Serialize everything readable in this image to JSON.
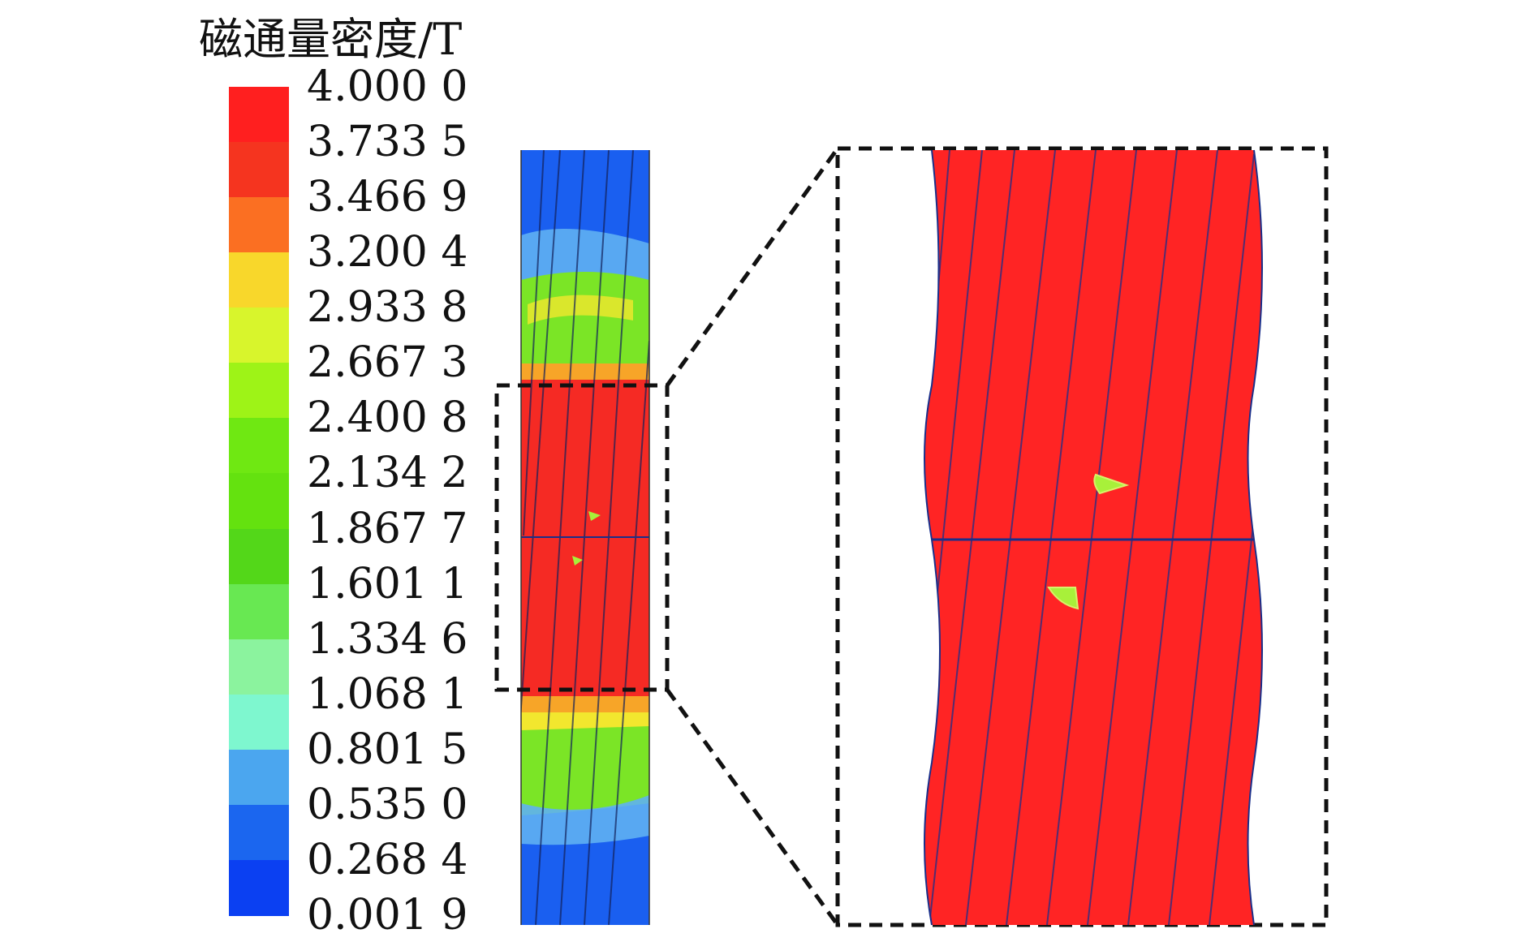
{
  "legend": {
    "title": "磁通量密度/T",
    "ticks": [
      "4.000 0",
      "3.733 5",
      "3.466 9",
      "3.200 4",
      "2.933 8",
      "2.667 3",
      "2.400 8",
      "2.134 2",
      "1.867 7",
      "1.601 1",
      "1.334 6",
      "1.068 1",
      "0.801 5",
      "0.535 0",
      "0.268 4",
      "0.001 9"
    ],
    "colors": [
      "#ff1f1f",
      "#f5341f",
      "#fb6f22",
      "#f8d72b",
      "#d8f52c",
      "#9ef317",
      "#6fe812",
      "#64e20f",
      "#53d719",
      "#68e852",
      "#8bf39e",
      "#7ef7cf",
      "#4ba6ef",
      "#1b66ef",
      "#0b40f2"
    ]
  },
  "diagram": {
    "rod": {
      "colors": {
        "blue": "#1a5ff0",
        "red": "#f52a24",
        "yellow": "#f2e72e",
        "green": "#7be526",
        "light_blue": "#5fb0f2"
      }
    },
    "zoom": {
      "fill": "#ff2424",
      "line_color": "#1a2f8a",
      "frame_style": "dashed",
      "frame_color": "#111111"
    }
  }
}
